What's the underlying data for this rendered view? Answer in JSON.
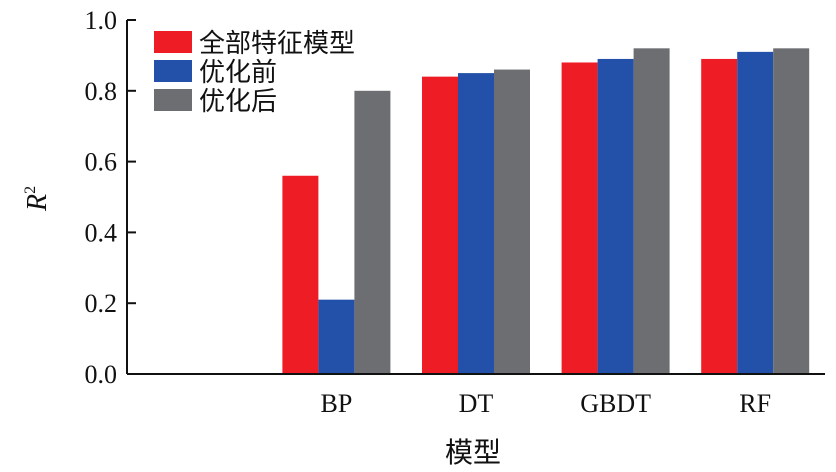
{
  "chart_data": {
    "type": "bar",
    "categories": [
      "",
      "BP",
      "DT",
      "GBDT",
      "RF"
    ],
    "series": [
      {
        "name": "全部特征模型",
        "color": "#ee1c25",
        "values": [
          null,
          0.56,
          0.84,
          0.88,
          0.89
        ]
      },
      {
        "name": "优化前",
        "color": "#2350a8",
        "values": [
          null,
          0.21,
          0.85,
          0.89,
          0.91
        ]
      },
      {
        "name": "优化后",
        "color": "#6d6e71",
        "values": [
          null,
          0.8,
          0.86,
          0.92,
          0.92
        ]
      }
    ],
    "xlabel": "模型",
    "ylabel": {
      "main": "R",
      "superscript": "2"
    },
    "ylim": [
      0,
      1.0
    ],
    "yticks": [
      "0.0",
      "0.2",
      "0.4",
      "0.6",
      "0.8",
      "1.0"
    ],
    "legend_position": "top-left",
    "grid": false
  }
}
